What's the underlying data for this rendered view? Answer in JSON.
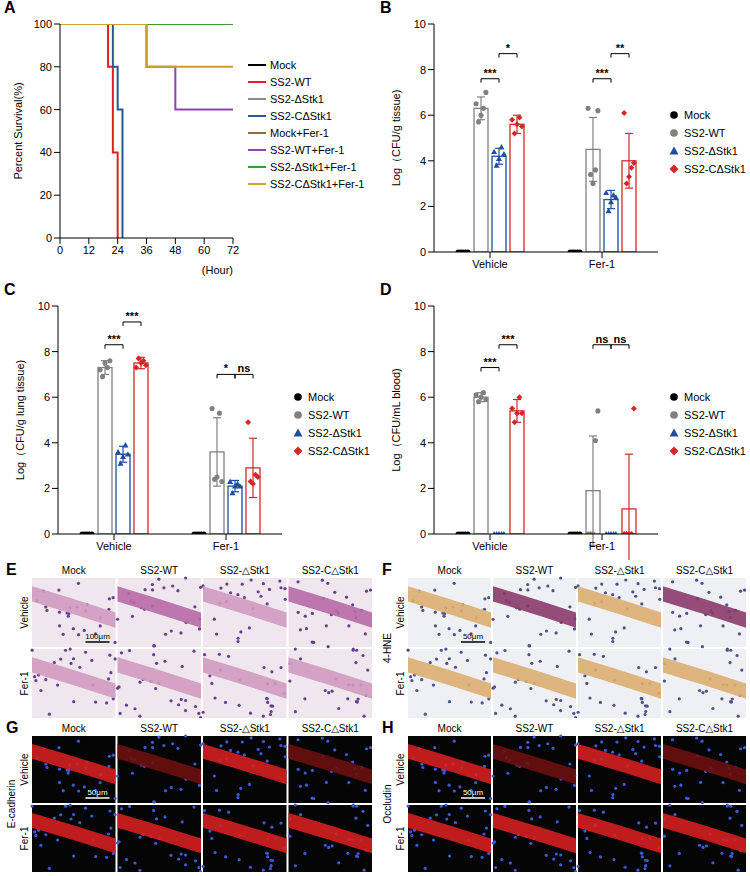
{
  "chart_data": [
    {
      "panel": "A",
      "type": "line",
      "line_style": "step",
      "xlabel": "(Hour)",
      "ylabel": "Percent Survival(%)",
      "x": [
        0,
        20,
        21,
        22,
        23,
        24,
        25,
        26,
        36,
        48,
        72
      ],
      "xlim": [
        0,
        72
      ],
      "xticks": [
        0,
        12,
        24,
        36,
        48,
        60,
        72
      ],
      "ylim": [
        0,
        100
      ],
      "yticks": [
        0,
        20,
        40,
        60,
        80,
        100
      ],
      "legend": "right",
      "series": [
        {
          "name": "Mock",
          "color": "#000000",
          "values": [
            100,
            100,
            100,
            100,
            100,
            100,
            100,
            100,
            100,
            100,
            100
          ]
        },
        {
          "name": "SS2-WT",
          "color": "#e0201b",
          "values": [
            100,
            80,
            80,
            40,
            40,
            0,
            null,
            null,
            null,
            null,
            null
          ]
        },
        {
          "name": "SS2-ΔStk1",
          "color": "#8c8c8c",
          "values": [
            100,
            100,
            100,
            100,
            100,
            100,
            100,
            100,
            100,
            100,
            100
          ]
        },
        {
          "name": "SS2-CΔStk1",
          "color": "#2a5599",
          "values": [
            100,
            100,
            100,
            80,
            80,
            60,
            60,
            0,
            null,
            null,
            null
          ]
        },
        {
          "name": "Mock+Fer-1",
          "color": "#9a6a2a",
          "values": [
            100,
            100,
            100,
            100,
            100,
            100,
            100,
            100,
            100,
            100,
            100
          ]
        },
        {
          "name": "SS2-WT+Fer-1",
          "color": "#8e44ad",
          "values": [
            100,
            100,
            100,
            100,
            100,
            100,
            100,
            100,
            80,
            60,
            60
          ]
        },
        {
          "name": "SS2-ΔStk1+Fer-1",
          "color": "#3a9a3a",
          "values": [
            100,
            100,
            100,
            100,
            100,
            100,
            100,
            100,
            100,
            100,
            100
          ]
        },
        {
          "name": "SS2-CΔStk1+Fer-1",
          "color": "#c9a227",
          "values": [
            100,
            100,
            100,
            100,
            100,
            100,
            100,
            100,
            80,
            80,
            80
          ]
        }
      ]
    },
    {
      "panel": "B",
      "type": "bar",
      "ylabel": "Log（CFU/g tissue)",
      "categories": [
        "Vehicle",
        "Fer-1"
      ],
      "ylim": [
        0,
        10
      ],
      "yticks": [
        0,
        2,
        4,
        6,
        8,
        10
      ],
      "legend": "right",
      "series": [
        {
          "name": "Mock",
          "color": "#000000",
          "marker": "circle",
          "values": [
            0,
            0
          ],
          "sd": [
            0,
            0
          ],
          "points": [
            [
              0,
              0,
              0,
              0,
              0
            ],
            [
              0,
              0,
              0,
              0,
              0
            ]
          ]
        },
        {
          "name": "SS2-WT",
          "color": "#808080",
          "marker": "circle",
          "values": [
            6.3,
            4.5
          ],
          "sd": [
            0.5,
            1.4
          ],
          "points": [
            [
              6.5,
              5.7,
              6.0,
              6.3,
              7.0
            ],
            [
              6.3,
              3.4,
              3.0,
              3.6,
              6.2
            ]
          ]
        },
        {
          "name": "SS2-ΔStk1",
          "color": "#1f4e9c",
          "marker": "triangle",
          "values": [
            4.2,
            2.3
          ],
          "sd": [
            0.35,
            0.4
          ],
          "points": [
            [
              4.4,
              3.8,
              4.1,
              4.6,
              4.3
            ],
            [
              2.6,
              1.8,
              2.2,
              2.5,
              2.4
            ]
          ]
        },
        {
          "name": "SS2-CΔStk1",
          "color": "#d62728",
          "marker": "diamond",
          "values": [
            5.6,
            4.0
          ],
          "sd": [
            0.4,
            1.2
          ],
          "points": [
            [
              5.8,
              5.2,
              5.6,
              5.9,
              5.5
            ],
            [
              6.1,
              3.0,
              3.3,
              3.7,
              3.9
            ]
          ]
        }
      ],
      "annotations": [
        {
          "category": "Vehicle",
          "from": "SS2-WT",
          "to": "SS2-ΔStk1",
          "label": "***",
          "y": 7.6
        },
        {
          "category": "Vehicle",
          "from": "SS2-ΔStk1",
          "to": "SS2-CΔStk1",
          "label": "*",
          "y": 8.7
        },
        {
          "category": "Fer-1",
          "from": "SS2-WT",
          "to": "SS2-ΔStk1",
          "label": "***",
          "y": 7.6
        },
        {
          "category": "Fer-1",
          "from": "SS2-ΔStk1",
          "to": "SS2-CΔStk1",
          "label": "**",
          "y": 8.7
        }
      ]
    },
    {
      "panel": "C",
      "type": "bar",
      "ylabel": "Log（CFU/g lung tissue)",
      "categories": [
        "Vehicle",
        "Fer-1"
      ],
      "ylim": [
        0,
        10
      ],
      "yticks": [
        0,
        2,
        4,
        6,
        8,
        10
      ],
      "legend": "right",
      "series": [
        {
          "name": "Mock",
          "color": "#000000",
          "marker": "circle",
          "values": [
            0,
            0
          ],
          "sd": [
            0,
            0
          ],
          "points": [
            [
              0,
              0,
              0,
              0,
              0
            ],
            [
              0,
              0,
              0,
              0,
              0
            ]
          ]
        },
        {
          "name": "SS2-WT",
          "color": "#808080",
          "marker": "circle",
          "values": [
            7.3,
            3.6
          ],
          "sd": [
            0.3,
            1.5
          ],
          "points": [
            [
              7.2,
              6.9,
              7.5,
              7.3,
              7.6
            ],
            [
              5.5,
              2.4,
              2.5,
              5.3,
              2.3
            ]
          ]
        },
        {
          "name": "SS2-ΔStk1",
          "color": "#1f4e9c",
          "marker": "triangle",
          "values": [
            3.5,
            2.1
          ],
          "sd": [
            0.35,
            0.25
          ],
          "points": [
            [
              3.6,
              3.1,
              3.4,
              3.9,
              3.5
            ],
            [
              2.3,
              1.8,
              2.1,
              2.2,
              2.1
            ]
          ]
        },
        {
          "name": "SS2-CΔStk1",
          "color": "#d62728",
          "marker": "diamond",
          "values": [
            7.5,
            2.9
          ],
          "sd": [
            0.25,
            1.3
          ],
          "points": [
            [
              7.3,
              7.7,
              7.5,
              7.6,
              7.4
            ],
            [
              4.9,
              2.3,
              2.2,
              2.6,
              2.5
            ]
          ]
        }
      ],
      "annotations": [
        {
          "category": "Vehicle",
          "from": "SS2-WT",
          "to": "SS2-ΔStk1",
          "label": "***",
          "y": 8.3
        },
        {
          "category": "Vehicle",
          "from": "SS2-ΔStk1",
          "to": "SS2-CΔStk1",
          "label": "***",
          "y": 9.3
        },
        {
          "category": "Fer-1",
          "from": "SS2-WT",
          "to": "SS2-ΔStk1",
          "label": "*",
          "y": 7.0
        },
        {
          "category": "Fer-1",
          "from": "SS2-ΔStk1",
          "to": "SS2-CΔStk1",
          "label": "ns",
          "y": 7.0
        }
      ]
    },
    {
      "panel": "D",
      "type": "bar",
      "ylabel": "Log（CFU/mL blood)",
      "categories": [
        "Vehicle",
        "Fer-1"
      ],
      "ylim": [
        0,
        10
      ],
      "yticks": [
        0,
        2,
        4,
        6,
        8,
        10
      ],
      "legend": "right",
      "series": [
        {
          "name": "Mock",
          "color": "#000000",
          "marker": "circle",
          "values": [
            0,
            0
          ],
          "sd": [
            0,
            0
          ],
          "points": [
            [
              0,
              0,
              0,
              0,
              0
            ],
            [
              0,
              0,
              0,
              0,
              0
            ]
          ]
        },
        {
          "name": "SS2-WT",
          "color": "#808080",
          "marker": "circle",
          "values": [
            6.0,
            1.9
          ],
          "sd": [
            0.2,
            2.4
          ],
          "points": [
            [
              6.1,
              5.8,
              6.0,
              6.2,
              5.9
            ],
            [
              0,
              0,
              0,
              4.1,
              5.4
            ]
          ]
        },
        {
          "name": "SS2-ΔStk1",
          "color": "#1f4e9c",
          "marker": "triangle",
          "values": [
            0,
            0
          ],
          "sd": [
            0,
            0
          ],
          "points": [
            [
              0,
              0,
              0,
              0,
              0
            ],
            [
              0,
              0,
              0,
              0,
              0
            ]
          ]
        },
        {
          "name": "SS2-CΔStk1",
          "color": "#d62728",
          "marker": "diamond",
          "values": [
            5.4,
            1.1
          ],
          "sd": [
            0.5,
            2.4
          ],
          "points": [
            [
              5.5,
              4.9,
              5.3,
              6.0,
              5.3
            ],
            [
              0,
              0,
              0,
              0,
              5.5
            ]
          ]
        }
      ],
      "annotations": [
        {
          "category": "Vehicle",
          "from": "SS2-WT",
          "to": "SS2-ΔStk1",
          "label": "***",
          "y": 7.3
        },
        {
          "category": "Vehicle",
          "from": "SS2-ΔStk1",
          "to": "SS2-CΔStk1",
          "label": "***",
          "y": 8.3
        },
        {
          "category": "Fer-1",
          "from": "SS2-WT",
          "to": "SS2-ΔStk1",
          "label": "ns",
          "y": 8.3
        },
        {
          "category": "Fer-1",
          "from": "SS2-ΔStk1",
          "to": "SS2-CΔStk1",
          "label": "ns",
          "y": 8.3
        }
      ]
    }
  ],
  "image_panels": [
    {
      "panel": "E",
      "columns": [
        "Mock",
        "SS2-WT",
        "SS2-△Stk1",
        "SS2-C△Stk1"
      ],
      "rows": [
        "Vehicle",
        "Fer-1"
      ],
      "scale_bar": "100μm"
    },
    {
      "panel": "F",
      "label": "4-HNE",
      "columns": [
        "Mock",
        "SS2-WT",
        "SS2-△Stk1",
        "SS2-C△Stk1"
      ],
      "rows": [
        "Vehicle",
        "Fer-1"
      ],
      "scale_bar": "50μm"
    },
    {
      "panel": "G",
      "label": "E-cadherin",
      "columns": [
        "Mock",
        "SS2-WT",
        "SS2-△Stk1",
        "SS2-C△Stk1"
      ],
      "rows": [
        "Vehicle",
        "Fer-1"
      ],
      "scale_bar": "50μm"
    },
    {
      "panel": "H",
      "label": "Occludin",
      "columns": [
        "Mock",
        "SS2-WT",
        "SS2-△Stk1",
        "SS2-C△Stk1"
      ],
      "rows": [
        "Vehicle",
        "Fer-1"
      ],
      "scale_bar": "50μm"
    }
  ]
}
